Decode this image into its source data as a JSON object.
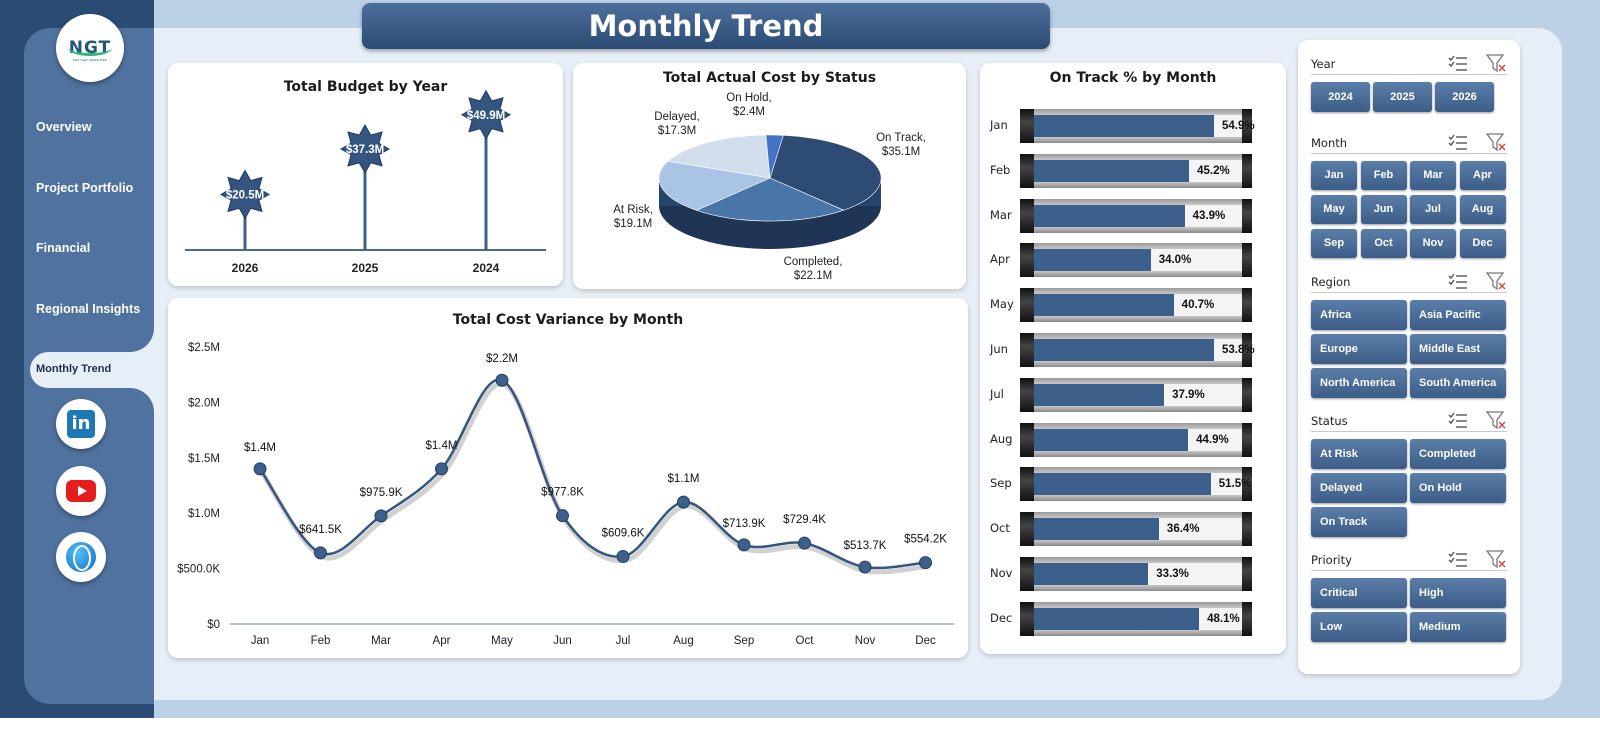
{
  "title": "Monthly Trend",
  "nav": {
    "items": [
      "Overview",
      "Project Portfolio",
      "Financial",
      "Regional Insights"
    ],
    "active": "Monthly Trend"
  },
  "logo": {
    "text": "NGT",
    "subtext": "NEXT GEN TEMPLATES"
  },
  "social": [
    "linkedin-icon",
    "youtube-icon",
    "website-globe-icon"
  ],
  "colors": {
    "primary": "#3d5f8c",
    "sidebar": "#4f729f",
    "sidebar_dark": "#294b74",
    "background": "#bcd0e6",
    "accent_dark": "#2b4b73"
  },
  "cards": {
    "budget": {
      "title": "Total Budget by Year"
    },
    "status": {
      "title": "Total Actual Cost by Status"
    },
    "ontrack": {
      "title": "On Track % by Month"
    },
    "variance": {
      "title": "Total Cost Variance by Month"
    }
  },
  "chart_data": [
    {
      "type": "bar",
      "title": "Total Budget by Year",
      "categories": [
        "2026",
        "2025",
        "2024"
      ],
      "values": [
        20.5,
        37.3,
        49.9
      ],
      "data_labels": [
        "$20.5M",
        "$37.3M",
        "$49.9M"
      ],
      "ylim": [
        0,
        55
      ]
    },
    {
      "type": "pie",
      "title": "Total Actual Cost by Status",
      "labels": [
        "On Track",
        "Completed",
        "At Risk",
        "Delayed",
        "On Hold"
      ],
      "values": [
        35.1,
        22.1,
        19.1,
        17.3,
        2.4
      ],
      "data_labels": [
        "$35.1M",
        "$22.1M",
        "$19.1M",
        "$17.3M",
        "$2.4M"
      ],
      "colors": [
        "#2e4b73",
        "#4a75a8",
        "#a9c4e4",
        "#d3deed",
        "#4472c4"
      ]
    },
    {
      "type": "line",
      "title": "Total Cost Variance by Month",
      "categories": [
        "Jan",
        "Feb",
        "Mar",
        "Apr",
        "May",
        "Jun",
        "Jul",
        "Aug",
        "Sep",
        "Oct",
        "Nov",
        "Dec"
      ],
      "values": [
        1.4,
        0.6415,
        0.9759,
        1.4,
        2.2,
        0.9778,
        0.6096,
        1.1,
        0.7139,
        0.7294,
        0.5137,
        0.5542
      ],
      "data_labels": [
        "$1.4M",
        "$641.5K",
        "$975.9K",
        "$1.4M",
        "$2.2M",
        "$977.8K",
        "$609.6K",
        "$1.1M",
        "$713.9K",
        "$729.4K",
        "$513.7K",
        "$554.2K"
      ],
      "yticks": [
        "$0",
        "$500.0K",
        "$1.0M",
        "$1.5M",
        "$2.0M",
        "$2.5M"
      ],
      "ylim": [
        0,
        2.5
      ]
    },
    {
      "type": "bar",
      "title": "On Track % by Month",
      "categories": [
        "Jan",
        "Feb",
        "Mar",
        "Apr",
        "May",
        "Jun",
        "Jul",
        "Aug",
        "Sep",
        "Oct",
        "Nov",
        "Dec"
      ],
      "values": [
        54.9,
        45.2,
        43.9,
        34.0,
        40.7,
        53.8,
        37.9,
        44.9,
        51.5,
        36.4,
        33.3,
        48.1
      ],
      "data_labels": [
        "54.9%",
        "45.2%",
        "43.9%",
        "34.0%",
        "40.7%",
        "53.8%",
        "37.9%",
        "44.9%",
        "51.5%",
        "36.4%",
        "33.3%",
        "48.1%"
      ],
      "xlim": [
        0,
        100
      ]
    }
  ],
  "slicers": {
    "year": {
      "title": "Year",
      "items": [
        "2024",
        "2025",
        "2026"
      ]
    },
    "month": {
      "title": "Month",
      "items": [
        "Jan",
        "Feb",
        "Mar",
        "Apr",
        "May",
        "Jun",
        "Jul",
        "Aug",
        "Sep",
        "Oct",
        "Nov",
        "Dec"
      ]
    },
    "region": {
      "title": "Region",
      "items": [
        "Africa",
        "Asia Pacific",
        "Europe",
        "Middle East",
        "North America",
        "South America"
      ]
    },
    "status": {
      "title": "Status",
      "items": [
        "At Risk",
        "Completed",
        "Delayed",
        "On Hold",
        "On Track"
      ]
    },
    "priority": {
      "title": "Priority",
      "items": [
        "Critical",
        "High",
        "Low",
        "Medium"
      ]
    }
  }
}
